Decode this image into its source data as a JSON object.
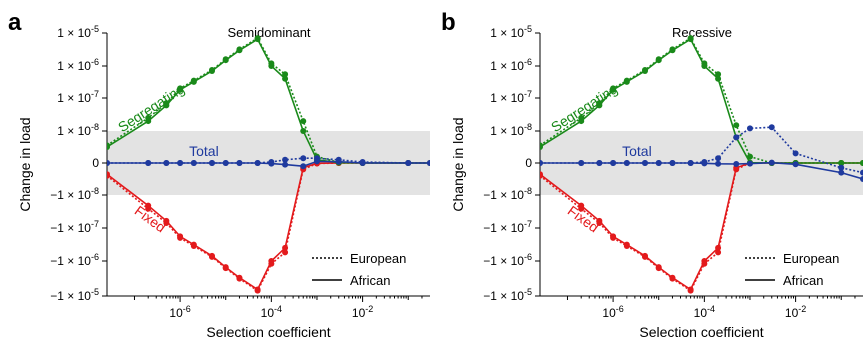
{
  "chart_data": [
    {
      "type": "line",
      "panel_label": "a",
      "title": "Semidominant",
      "xlabel": "Selection coefficient",
      "ylabel": "Change in load",
      "xscale": "log",
      "yscale": "symlog",
      "xlim": [
        2.5e-08,
        0.3
      ],
      "ylim": [
        -1e-05,
        1e-05
      ],
      "x_ticks": [
        "10^-6",
        "10^-4",
        "10^-2"
      ],
      "y_ticks": [
        "1 × 10^-5",
        "1 × 10^-6",
        "1 × 10^-7",
        "1 × 10^-8",
        "0",
        "−1 × 10^-8",
        "−1 × 10^-7",
        "−1 × 10^-6",
        "−1 × 10^-5"
      ],
      "shaded_band": [
        -1e-08,
        1e-08
      ],
      "annotations": [
        {
          "text": "Segregating",
          "color": "#1a8a1a"
        },
        {
          "text": "Total",
          "color": "#1f3a9e"
        },
        {
          "text": "Fixed",
          "color": "#e31a1c"
        }
      ],
      "legend": {
        "position": "bottom-right",
        "entries": [
          {
            "label": "European",
            "style": "dotted"
          },
          {
            "label": "African",
            "style": "solid"
          }
        ]
      },
      "x": [
        2.5e-08,
        2e-07,
        5e-07,
        1e-06,
        2e-06,
        5e-06,
        1e-05,
        2e-05,
        5e-05,
        0.0001,
        0.0002,
        0.0005,
        0.001,
        0.003,
        0.01,
        0.1,
        0.3
      ],
      "series": [
        {
          "name": "Segregating",
          "population": "African",
          "style": "solid",
          "color": "#1a8a1a",
          "values": [
            5e-09,
            2e-08,
            6e-08,
            1.8e-07,
            3.2e-07,
            7e-07,
            1.5e-06,
            3e-06,
            6.5e-06,
            1e-06,
            4e-07,
            1e-08,
            1e-09,
            1e-10,
            1e-11,
            0,
            0
          ]
        },
        {
          "name": "Segregating",
          "population": "European",
          "style": "dotted",
          "color": "#1a8a1a",
          "values": [
            5.5e-09,
            2.5e-08,
            7e-08,
            2e-07,
            3.5e-07,
            7.5e-07,
            1.6e-06,
            3.2e-06,
            7e-06,
            1.2e-06,
            5.5e-07,
            2e-08,
            2e-09,
            2e-10,
            1e-11,
            0,
            0
          ]
        },
        {
          "name": "Fixed",
          "population": "African",
          "style": "solid",
          "color": "#e31a1c",
          "values": [
            -3.5e-09,
            -2e-08,
            -6e-08,
            -1.8e-07,
            -3.2e-07,
            -7e-07,
            -1.5e-06,
            -3e-06,
            -6.5e-06,
            -1e-06,
            -4e-07,
            -1.5e-09,
            -1e-10,
            -1e-11,
            0,
            0,
            0
          ]
        },
        {
          "name": "Fixed",
          "population": "European",
          "style": "dotted",
          "color": "#e31a1c",
          "values": [
            -4e-09,
            -2.5e-08,
            -7e-08,
            -2e-07,
            -3.5e-07,
            -7.5e-07,
            -1.6e-06,
            -3.2e-06,
            -7e-06,
            -1.2e-06,
            -5.5e-07,
            -2e-09,
            -1.5e-10,
            0,
            0,
            0,
            0
          ]
        },
        {
          "name": "Total",
          "population": "African",
          "style": "solid",
          "color": "#1f3a9e",
          "values": [
            0,
            0,
            0,
            0,
            0,
            0,
            0,
            0,
            0,
            -2e-10,
            -5e-10,
            -1e-09,
            5e-10,
            4e-10,
            0,
            0,
            0
          ]
        },
        {
          "name": "Total",
          "population": "European",
          "style": "dotted",
          "color": "#1f3a9e",
          "values": [
            0,
            0,
            0,
            0,
            0,
            0,
            0,
            0,
            0,
            3e-10,
            1e-09,
            1.5e-09,
            1.5e-09,
            1e-09,
            3e-10,
            0,
            0
          ]
        }
      ]
    },
    {
      "type": "line",
      "panel_label": "b",
      "title": "Recessive",
      "xlabel": "Selection coefficient",
      "ylabel": "Change in load",
      "xscale": "log",
      "yscale": "symlog",
      "xlim": [
        2.5e-08,
        0.3
      ],
      "ylim": [
        -1e-05,
        1e-05
      ],
      "x_ticks": [
        "10^-6",
        "10^-4",
        "10^-2"
      ],
      "y_ticks": [
        "1 × 10^-5",
        "1 × 10^-6",
        "1 × 10^-7",
        "1 × 10^-8",
        "0",
        "−1 × 10^-8",
        "−1 × 10^-7",
        "−1 × 10^-6",
        "−1 × 10^-5"
      ],
      "shaded_band": [
        -1e-08,
        1e-08
      ],
      "annotations": [
        {
          "text": "Segregating",
          "color": "#1a8a1a"
        },
        {
          "text": "Total",
          "color": "#1f3a9e"
        },
        {
          "text": "Fixed",
          "color": "#e31a1c"
        }
      ],
      "legend": {
        "position": "bottom-right",
        "entries": [
          {
            "label": "European",
            "style": "dotted"
          },
          {
            "label": "African",
            "style": "solid"
          }
        ]
      },
      "x": [
        2.5e-08,
        2e-07,
        5e-07,
        1e-06,
        2e-06,
        5e-06,
        1e-05,
        2e-05,
        5e-05,
        0.0001,
        0.0002,
        0.0005,
        0.001,
        0.003,
        0.01,
        0.1,
        0.3
      ],
      "series": [
        {
          "name": "Segregating",
          "population": "African",
          "style": "solid",
          "color": "#1a8a1a",
          "values": [
            5e-09,
            2e-08,
            6e-08,
            1.8e-07,
            3.2e-07,
            7e-07,
            1.5e-06,
            3e-06,
            6.5e-06,
            1e-06,
            4e-07,
            8e-09,
            1e-10,
            0,
            0,
            0,
            0
          ]
        },
        {
          "name": "Segregating",
          "population": "European",
          "style": "dotted",
          "color": "#1a8a1a",
          "values": [
            5.5e-09,
            2.5e-08,
            7e-08,
            2e-07,
            3.5e-07,
            7.5e-07,
            1.6e-06,
            3.2e-06,
            7e-06,
            1.2e-06,
            5.5e-07,
            1.5e-08,
            2e-09,
            0,
            0,
            0,
            0
          ]
        },
        {
          "name": "Fixed",
          "population": "African",
          "style": "solid",
          "color": "#e31a1c",
          "values": [
            -3.5e-09,
            -2e-08,
            -6e-08,
            -1.8e-07,
            -3.2e-07,
            -7e-07,
            -1.5e-06,
            -3e-06,
            -6.5e-06,
            -1e-06,
            -4e-07,
            -1.5e-09,
            0,
            0,
            0,
            0,
            0
          ]
        },
        {
          "name": "Fixed",
          "population": "European",
          "style": "dotted",
          "color": "#e31a1c",
          "values": [
            -4e-09,
            -2.5e-08,
            -7e-08,
            -2e-07,
            -3.5e-07,
            -7.5e-07,
            -1.6e-06,
            -3.2e-06,
            -7e-06,
            -1.2e-06,
            -5.5e-07,
            -2e-09,
            0,
            0,
            0,
            0,
            0
          ]
        },
        {
          "name": "Total",
          "population": "African",
          "style": "solid",
          "color": "#1f3a9e",
          "values": [
            0,
            0,
            0,
            0,
            0,
            0,
            0,
            0,
            0,
            -1e-10,
            -2.5e-10,
            -3e-10,
            -2e-10,
            1e-10,
            -4e-10,
            -3e-09,
            -5e-09
          ]
        },
        {
          "name": "Total",
          "population": "European",
          "style": "dotted",
          "color": "#1f3a9e",
          "values": [
            0,
            0,
            0,
            0,
            0,
            0,
            0,
            0,
            0,
            3e-10,
            1.5e-09,
            8e-09,
            1.2e-08,
            1.3e-08,
            3e-09,
            -1.5e-09,
            -3e-09
          ]
        }
      ]
    }
  ]
}
